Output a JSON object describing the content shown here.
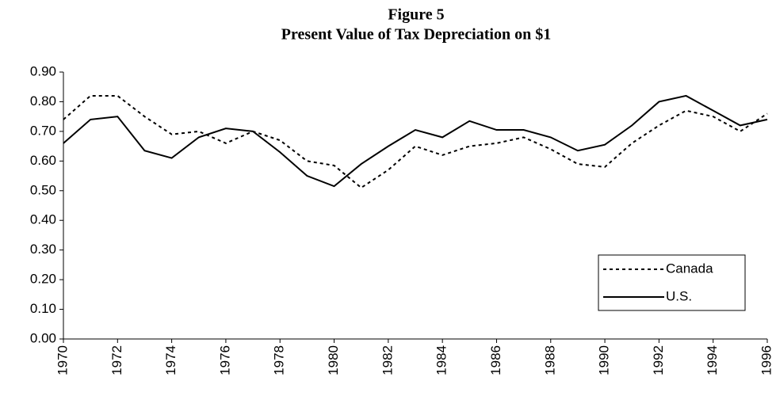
{
  "chart_data": {
    "type": "line",
    "title": "Figure 5",
    "subtitle": "Present Value of Tax Depreciation on $1",
    "x": [
      1970,
      1971,
      1972,
      1973,
      1974,
      1975,
      1976,
      1977,
      1978,
      1979,
      1980,
      1981,
      1982,
      1983,
      1984,
      1985,
      1986,
      1987,
      1988,
      1989,
      1990,
      1991,
      1992,
      1993,
      1994,
      1995,
      1996
    ],
    "xlim": [
      1970,
      1996
    ],
    "xticks": [
      1970,
      1972,
      1974,
      1976,
      1978,
      1980,
      1982,
      1984,
      1986,
      1988,
      1990,
      1992,
      1994,
      1996
    ],
    "ylim": [
      0,
      0.9
    ],
    "yticks": [
      {
        "value": 0,
        "label": "0.00"
      },
      {
        "value": 0.1,
        "label": "0.10"
      },
      {
        "value": 0.2,
        "label": "0.20"
      },
      {
        "value": 0.3,
        "label": "0.30"
      },
      {
        "value": 0.4,
        "label": "0.40"
      },
      {
        "value": 0.5,
        "label": "0.50"
      },
      {
        "value": 0.6,
        "label": "0.60"
      },
      {
        "value": 0.7,
        "label": "0.70"
      },
      {
        "value": 0.8,
        "label": "0.80"
      },
      {
        "value": 0.9,
        "label": "0.90"
      }
    ],
    "grid": false,
    "legend": "bottom-right",
    "series": [
      {
        "name": "Canada",
        "color": "#000000",
        "dash": true,
        "values": [
          0.74,
          0.82,
          0.82,
          0.75,
          0.69,
          0.7,
          0.66,
          0.7,
          0.67,
          0.6,
          0.585,
          0.51,
          0.57,
          0.65,
          0.62,
          0.65,
          0.66,
          0.68,
          0.64,
          0.59,
          0.58,
          0.66,
          0.72,
          0.77,
          0.75,
          0.7,
          0.76
        ]
      },
      {
        "name": "U.S.",
        "color": "#000000",
        "dash": false,
        "values": [
          0.66,
          0.74,
          0.75,
          0.635,
          0.61,
          0.68,
          0.71,
          0.7,
          0.63,
          0.55,
          0.515,
          0.59,
          0.65,
          0.705,
          0.68,
          0.735,
          0.705,
          0.705,
          0.68,
          0.635,
          0.655,
          0.72,
          0.8,
          0.82,
          0.77,
          0.72,
          0.74
        ]
      }
    ]
  }
}
